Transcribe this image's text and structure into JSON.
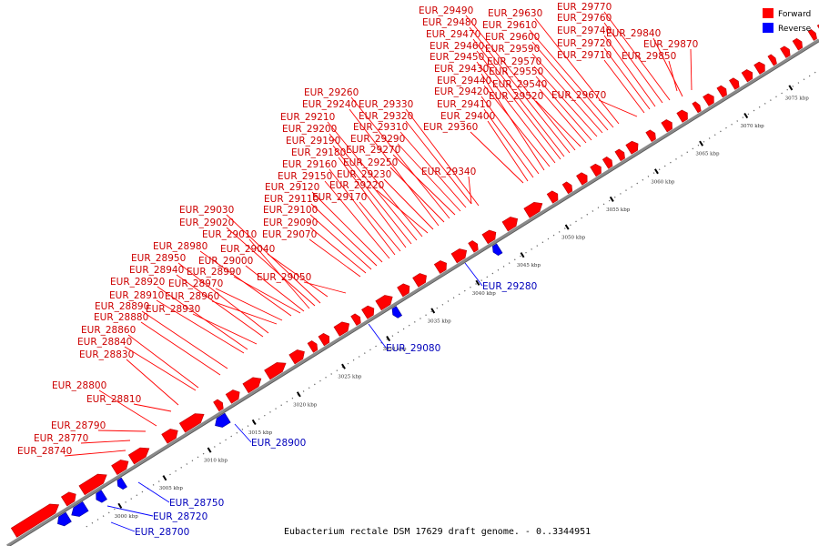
{
  "caption": "Eubacterium rectale DSM 17629 draft genome. - 0..3344951",
  "legend": {
    "forward_label": "Forward",
    "reverse_label": "Reverse",
    "forward_color": "#ff0000",
    "reverse_color": "#0000ff"
  },
  "label_colors": {
    "forward": "#cc0000",
    "reverse": "#0000bb"
  },
  "ticks": [
    "3000 kbp",
    "3005 kbp",
    "3010 kbp",
    "3015 kbp",
    "3020 kbp",
    "3025 kbp",
    "3030 kbp",
    "3035 kbp",
    "3040 kbp",
    "3045 kbp",
    "3050 kbp",
    "3055 kbp",
    "3060 kbp",
    "3065 kbp",
    "3070 kbp",
    "3075 kbp",
    "3080 kbp",
    "3085 kbp"
  ],
  "forward_genes": [
    "EUR_28740",
    "EUR_28770",
    "EUR_28790",
    "EUR_28800",
    "EUR_28810",
    "EUR_28830",
    "EUR_28840",
    "EUR_28860",
    "EUR_28880",
    "EUR_28890",
    "EUR_28910",
    "EUR_28920",
    "EUR_28930",
    "EUR_28940",
    "EUR_28950",
    "EUR_28960",
    "EUR_28970",
    "EUR_28980",
    "EUR_28990",
    "EUR_29000",
    "EUR_29010",
    "EUR_29020",
    "EUR_29030",
    "EUR_29040",
    "EUR_29050",
    "EUR_29070",
    "EUR_29090",
    "EUR_29100",
    "EUR_29110",
    "EUR_29120",
    "EUR_29150",
    "EUR_29160",
    "EUR_29170",
    "EUR_29180",
    "EUR_29190",
    "EUR_29200",
    "EUR_29210",
    "EUR_29220",
    "EUR_29230",
    "EUR_29240",
    "EUR_29250",
    "EUR_29260",
    "EUR_29270",
    "EUR_29290",
    "EUR_29310",
    "EUR_29320",
    "EUR_29330",
    "EUR_29340",
    "EUR_29360",
    "EUR_29400",
    "EUR_29410",
    "EUR_29420",
    "EUR_29430",
    "EUR_29440",
    "EUR_29450",
    "EUR_29460",
    "EUR_29470",
    "EUR_29480",
    "EUR_29490",
    "EUR_29520",
    "EUR_29540",
    "EUR_29550",
    "EUR_29570",
    "EUR_29590",
    "EUR_29600",
    "EUR_29610",
    "EUR_29630",
    "EUR_29670",
    "EUR_29710",
    "EUR_29720",
    "EUR_29740",
    "EUR_29760",
    "EUR_29770",
    "EUR_29840",
    "EUR_29850",
    "EUR_29870"
  ],
  "reverse_genes": [
    "EUR_28700",
    "EUR_28720",
    "EUR_28750",
    "EUR_28900",
    "EUR_29080",
    "EUR_29280"
  ]
}
